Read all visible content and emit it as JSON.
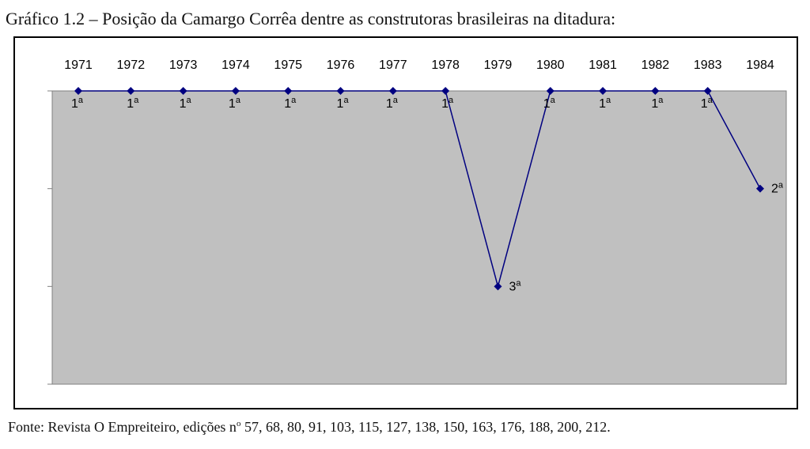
{
  "title": "Gráfico 1.2 – Posição da Camargo Corrêa dentre as construtoras brasileiras na ditadura:",
  "source": {
    "prefix": "Fonte: Revista O Empreiteiro, edições n",
    "superscript": "o",
    "suffix": " 57, 68, 80, 91, 103, 115, 127, 138, 150, 163, 176, 188, 200, 212."
  },
  "chart_data": {
    "type": "line",
    "title": "",
    "xlabel": "",
    "ylabel": "",
    "x_axis_position": "top",
    "y_inverted": true,
    "ylim": [
      1,
      4
    ],
    "grid": false,
    "plot_background": "#c0c0c0",
    "series": [
      {
        "color": "#000080",
        "marker": "diamond",
        "x": [
          "1971",
          "1972",
          "1973",
          "1974",
          "1975",
          "1976",
          "1977",
          "1978",
          "1979",
          "1980",
          "1981",
          "1982",
          "1983",
          "1984"
        ],
        "values": [
          1,
          1,
          1,
          1,
          1,
          1,
          1,
          1,
          3,
          1,
          1,
          1,
          1,
          2
        ],
        "labels": [
          "1ª",
          "1ª",
          "1ª",
          "1ª",
          "1ª",
          "1ª",
          "1ª",
          "1ª",
          "3ª",
          "1ª",
          "1ª",
          "1ª",
          "1ª",
          "2ª"
        ]
      }
    ]
  }
}
